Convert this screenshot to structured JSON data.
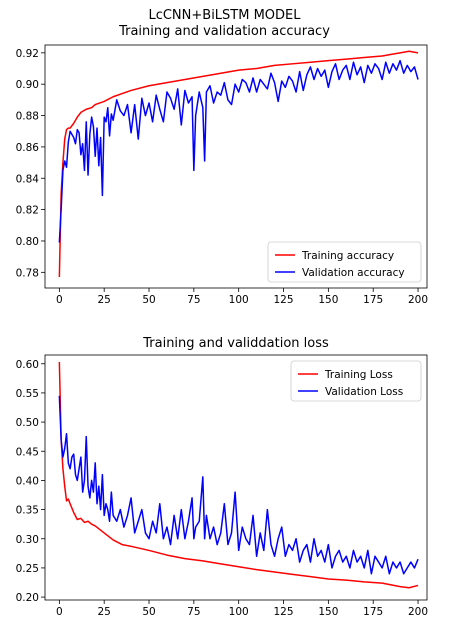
{
  "chart_data": [
    {
      "type": "line",
      "suptitle": "LcCNN+BiLSTM MODEL",
      "title": "Training and validation accuracy",
      "xlim": [
        -8,
        205
      ],
      "ylim": [
        0.77,
        0.925
      ],
      "xticks": [
        "0",
        "25",
        "50",
        "75",
        "100",
        "125",
        "150",
        "175",
        "200"
      ],
      "xtick_values": [
        0,
        25,
        50,
        75,
        100,
        125,
        150,
        175,
        200
      ],
      "yticks": [
        "0.78",
        "0.80",
        "0.82",
        "0.84",
        "0.86",
        "0.88",
        "0.90",
        "0.92"
      ],
      "ytick_values": [
        0.78,
        0.8,
        0.82,
        0.84,
        0.86,
        0.88,
        0.9,
        0.92
      ],
      "grid": false,
      "legend_position": "lower-right",
      "series": [
        {
          "name": "Training accuracy",
          "color": "#ff0000",
          "x": [
            0,
            1,
            2,
            3,
            4,
            5,
            6,
            8,
            10,
            12,
            15,
            18,
            20,
            25,
            30,
            35,
            40,
            50,
            60,
            70,
            80,
            90,
            100,
            110,
            120,
            130,
            140,
            150,
            160,
            170,
            180,
            185,
            190,
            195,
            200
          ],
          "y": [
            0.777,
            0.83,
            0.85,
            0.865,
            0.871,
            0.872,
            0.872,
            0.875,
            0.879,
            0.882,
            0.884,
            0.885,
            0.887,
            0.889,
            0.892,
            0.894,
            0.896,
            0.899,
            0.901,
            0.903,
            0.905,
            0.907,
            0.909,
            0.91,
            0.912,
            0.913,
            0.914,
            0.915,
            0.916,
            0.917,
            0.918,
            0.919,
            0.92,
            0.921,
            0.92
          ]
        },
        {
          "name": "Validation accuracy",
          "color": "#0000ff",
          "x": [
            0,
            1,
            2,
            3,
            4,
            5,
            6,
            7,
            8,
            9,
            10,
            11,
            12,
            13,
            14,
            15,
            16,
            17,
            18,
            19,
            20,
            21,
            22,
            23,
            24,
            25,
            26,
            27,
            28,
            29,
            30,
            32,
            34,
            36,
            38,
            40,
            42,
            44,
            46,
            48,
            50,
            52,
            54,
            56,
            58,
            60,
            62,
            64,
            66,
            68,
            70,
            72,
            74,
            75,
            76,
            78,
            80,
            81,
            82,
            84,
            86,
            88,
            90,
            92,
            94,
            96,
            98,
            100,
            102,
            104,
            106,
            108,
            110,
            112,
            114,
            116,
            118,
            120,
            122,
            124,
            126,
            128,
            130,
            132,
            134,
            136,
            138,
            140,
            142,
            144,
            146,
            148,
            150,
            152,
            154,
            156,
            158,
            160,
            162,
            164,
            166,
            168,
            170,
            172,
            174,
            176,
            178,
            180,
            182,
            184,
            186,
            188,
            190,
            192,
            194,
            196,
            198,
            200
          ],
          "y": [
            0.799,
            0.82,
            0.845,
            0.851,
            0.847,
            0.863,
            0.87,
            0.868,
            0.866,
            0.862,
            0.871,
            0.869,
            0.855,
            0.862,
            0.845,
            0.876,
            0.842,
            0.868,
            0.879,
            0.873,
            0.854,
            0.872,
            0.848,
            0.866,
            0.829,
            0.879,
            0.876,
            0.885,
            0.867,
            0.881,
            0.877,
            0.89,
            0.883,
            0.88,
            0.887,
            0.869,
            0.887,
            0.865,
            0.891,
            0.88,
            0.888,
            0.876,
            0.893,
            0.884,
            0.876,
            0.895,
            0.891,
            0.884,
            0.897,
            0.874,
            0.896,
            0.888,
            0.892,
            0.845,
            0.88,
            0.895,
            0.885,
            0.851,
            0.895,
            0.899,
            0.888,
            0.895,
            0.893,
            0.901,
            0.89,
            0.887,
            0.9,
            0.895,
            0.903,
            0.901,
            0.895,
            0.904,
            0.895,
            0.903,
            0.9,
            0.897,
            0.907,
            0.901,
            0.889,
            0.902,
            0.898,
            0.905,
            0.902,
            0.895,
            0.908,
            0.896,
            0.906,
            0.911,
            0.903,
            0.91,
            0.905,
            0.909,
            0.898,
            0.908,
            0.913,
            0.903,
            0.909,
            0.912,
            0.903,
            0.914,
            0.906,
            0.911,
            0.901,
            0.912,
            0.907,
            0.913,
            0.91,
            0.903,
            0.914,
            0.907,
            0.913,
            0.909,
            0.915,
            0.907,
            0.912,
            0.908,
            0.911,
            0.903
          ]
        }
      ]
    },
    {
      "type": "line",
      "title": "Training and validdation loss",
      "xlim": [
        -8,
        205
      ],
      "ylim": [
        0.195,
        0.615
      ],
      "xticks": [
        "0",
        "25",
        "50",
        "75",
        "100",
        "125",
        "150",
        "175",
        "200"
      ],
      "xtick_values": [
        0,
        25,
        50,
        75,
        100,
        125,
        150,
        175,
        200
      ],
      "yticks": [
        "0.20",
        "0.25",
        "0.30",
        "0.35",
        "0.40",
        "0.45",
        "0.50",
        "0.55",
        "0.60"
      ],
      "ytick_values": [
        0.2,
        0.25,
        0.3,
        0.35,
        0.4,
        0.45,
        0.5,
        0.55,
        0.6
      ],
      "grid": false,
      "legend_position": "upper-right",
      "series": [
        {
          "name": "Training Loss",
          "color": "#ff0000",
          "x": [
            0,
            1,
            2,
            3,
            4,
            5,
            6,
            8,
            10,
            12,
            14,
            16,
            18,
            20,
            25,
            30,
            35,
            40,
            50,
            60,
            70,
            80,
            90,
            100,
            110,
            120,
            130,
            140,
            150,
            160,
            170,
            180,
            190,
            195,
            200
          ],
          "y": [
            0.603,
            0.47,
            0.42,
            0.39,
            0.365,
            0.368,
            0.36,
            0.345,
            0.333,
            0.335,
            0.328,
            0.33,
            0.325,
            0.322,
            0.31,
            0.298,
            0.29,
            0.287,
            0.28,
            0.272,
            0.266,
            0.262,
            0.257,
            0.252,
            0.247,
            0.243,
            0.239,
            0.235,
            0.231,
            0.229,
            0.226,
            0.224,
            0.218,
            0.216,
            0.22
          ]
        },
        {
          "name": "Validation Loss",
          "color": "#0000ff",
          "x": [
            0,
            1,
            2,
            3,
            4,
            5,
            6,
            7,
            8,
            9,
            10,
            11,
            12,
            13,
            14,
            15,
            16,
            17,
            18,
            19,
            20,
            21,
            22,
            23,
            24,
            25,
            26,
            27,
            28,
            29,
            30,
            32,
            34,
            36,
            38,
            40,
            42,
            44,
            46,
            48,
            50,
            52,
            54,
            56,
            58,
            60,
            62,
            64,
            66,
            68,
            70,
            72,
            74,
            75,
            76,
            78,
            80,
            81,
            82,
            84,
            86,
            88,
            90,
            92,
            94,
            96,
            98,
            100,
            102,
            104,
            106,
            108,
            110,
            112,
            114,
            116,
            118,
            120,
            122,
            124,
            126,
            128,
            130,
            132,
            134,
            136,
            138,
            140,
            142,
            144,
            146,
            148,
            150,
            152,
            154,
            156,
            158,
            160,
            162,
            164,
            166,
            168,
            170,
            172,
            174,
            176,
            178,
            180,
            182,
            184,
            186,
            188,
            190,
            192,
            194,
            196,
            198,
            200
          ],
          "y": [
            0.545,
            0.47,
            0.44,
            0.455,
            0.48,
            0.43,
            0.42,
            0.44,
            0.445,
            0.41,
            0.4,
            0.42,
            0.44,
            0.38,
            0.4,
            0.475,
            0.39,
            0.37,
            0.4,
            0.38,
            0.43,
            0.36,
            0.39,
            0.35,
            0.41,
            0.34,
            0.36,
            0.35,
            0.33,
            0.38,
            0.34,
            0.33,
            0.35,
            0.32,
            0.34,
            0.37,
            0.31,
            0.33,
            0.35,
            0.31,
            0.3,
            0.33,
            0.31,
            0.36,
            0.3,
            0.32,
            0.29,
            0.34,
            0.3,
            0.35,
            0.3,
            0.33,
            0.37,
            0.3,
            0.32,
            0.33,
            0.406,
            0.3,
            0.34,
            0.3,
            0.32,
            0.29,
            0.31,
            0.36,
            0.29,
            0.31,
            0.38,
            0.28,
            0.32,
            0.3,
            0.29,
            0.34,
            0.27,
            0.31,
            0.28,
            0.35,
            0.29,
            0.27,
            0.3,
            0.32,
            0.27,
            0.29,
            0.28,
            0.3,
            0.26,
            0.28,
            0.29,
            0.26,
            0.3,
            0.27,
            0.28,
            0.26,
            0.29,
            0.25,
            0.27,
            0.28,
            0.26,
            0.27,
            0.25,
            0.28,
            0.26,
            0.27,
            0.25,
            0.28,
            0.24,
            0.27,
            0.26,
            0.25,
            0.27,
            0.24,
            0.26,
            0.25,
            0.26,
            0.24,
            0.25,
            0.26,
            0.25,
            0.265
          ]
        }
      ]
    }
  ]
}
